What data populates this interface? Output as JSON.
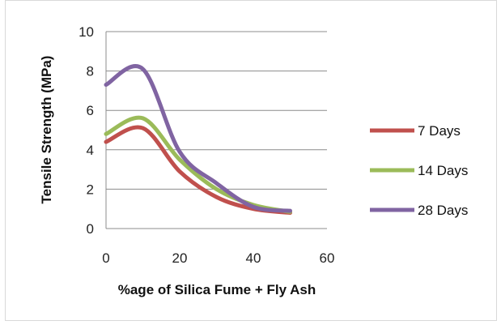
{
  "chart_data": {
    "type": "line",
    "title": "",
    "xlabel": "%age of Silica Fume + Fly Ash",
    "ylabel": "Tensile Strength (MPa)",
    "xlim": [
      0,
      60
    ],
    "ylim": [
      0,
      10
    ],
    "xticks": [
      "0",
      "20",
      "40",
      "60"
    ],
    "yticks": [
      "0",
      "2",
      "4",
      "6",
      "8",
      "10"
    ],
    "grid": "horizontal",
    "legend_position": "right",
    "series": [
      {
        "name": "7 Days",
        "color": "#c0504d",
        "x": [
          0,
          10,
          20,
          30,
          40,
          50
        ],
        "values": [
          4.4,
          5.1,
          2.9,
          1.6,
          1.0,
          0.8
        ]
      },
      {
        "name": "14 Days",
        "color": "#9bbb59",
        "x": [
          0,
          10,
          20,
          30,
          40,
          50
        ],
        "values": [
          4.8,
          5.6,
          3.5,
          2.0,
          1.2,
          0.85
        ]
      },
      {
        "name": "28 Days",
        "color": "#8064a2",
        "x": [
          0,
          10,
          20,
          30,
          40,
          50
        ],
        "values": [
          7.3,
          8.1,
          3.9,
          2.3,
          1.1,
          0.9
        ]
      }
    ]
  }
}
